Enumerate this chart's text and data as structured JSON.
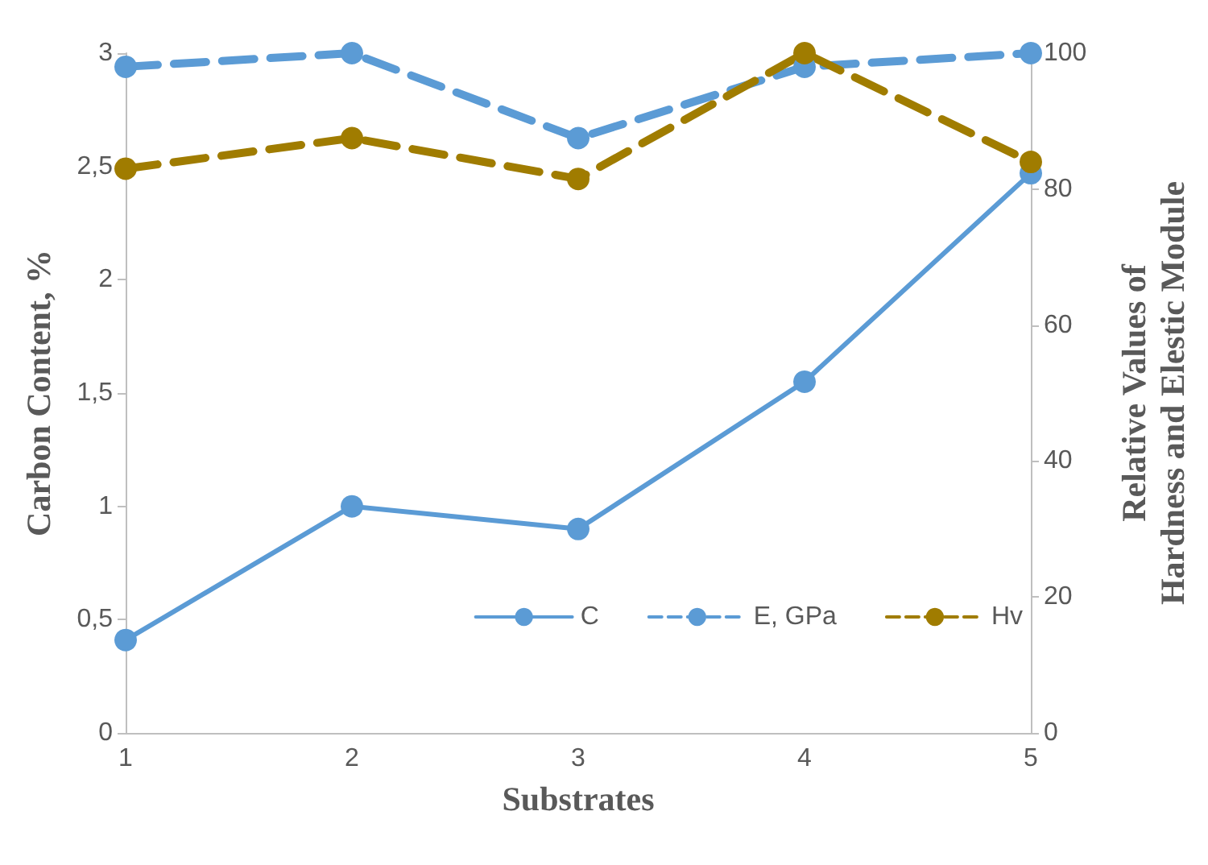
{
  "chart_data": {
    "type": "line",
    "xlabel": "Substrates",
    "ylabel": "Carbon Content, %",
    "y2label": "Relative Values of\nHardness and Elestic Module",
    "categories": [
      "1",
      "2",
      "3",
      "4",
      "5"
    ],
    "ylim": [
      0,
      3
    ],
    "yticks": [
      0,
      {
        "value": 0.5,
        "label": "0,5"
      },
      1,
      {
        "value": 1.5,
        "label": "1,5"
      },
      2,
      {
        "value": 2.5,
        "label": "2,5"
      },
      3
    ],
    "y2lim": [
      0,
      100
    ],
    "y2ticks": [
      0,
      20,
      40,
      60,
      80,
      100
    ],
    "series": [
      {
        "name": "C",
        "color": "#5b9bd5",
        "values": [
          0.41,
          1.0,
          0.9,
          1.55,
          2.47
        ],
        "line_style": "solid"
      },
      {
        "name": "E, GPa",
        "color": "#5b9bd5",
        "values": [
          98,
          100,
          87.5,
          98,
          100
        ],
        "axis": "y2",
        "line_style": "dashed"
      },
      {
        "name": "Hv",
        "color": "#a07c00",
        "values": [
          83,
          87.5,
          81.5,
          100,
          84
        ],
        "axis": "y2",
        "line_style": "dashed"
      }
    ],
    "marker": "circle",
    "grid": false,
    "legend": "bottom right"
  }
}
